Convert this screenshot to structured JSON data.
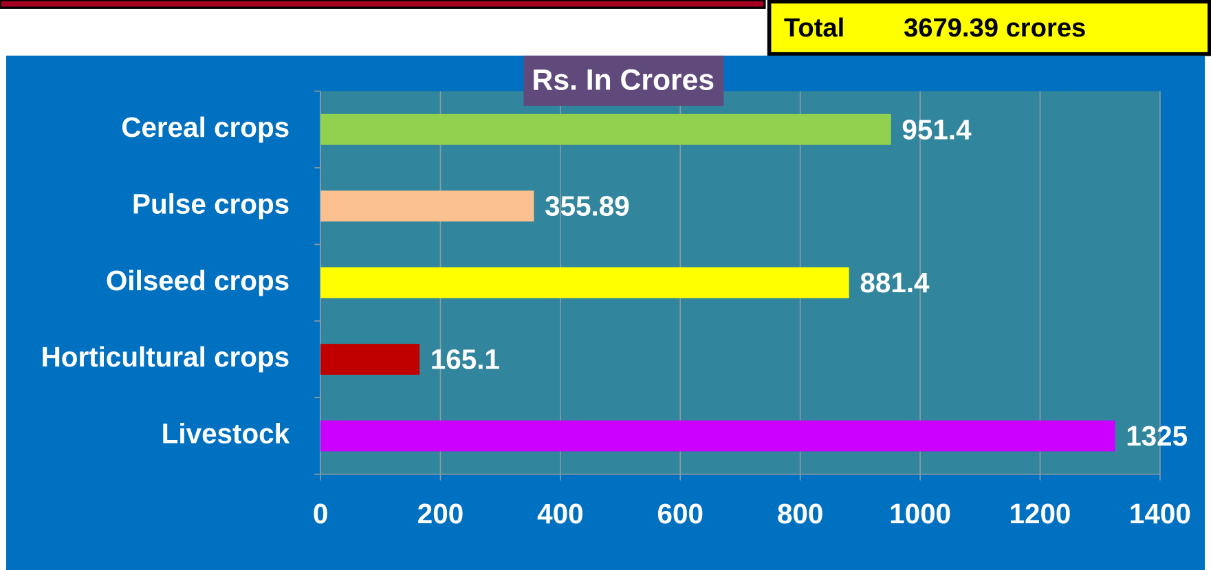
{
  "header": {
    "total_label": "Total",
    "total_value": "3679.39 crores"
  },
  "chart_data": {
    "type": "bar",
    "orientation": "horizontal",
    "title": "Rs. In Crores",
    "categories": [
      "Cereal crops",
      "Pulse crops",
      "Oilseed crops",
      "Horticultural crops",
      "Livestock"
    ],
    "values": [
      951.4,
      355.89,
      881.4,
      165.1,
      1325
    ],
    "colors": [
      "#92d050",
      "#fac090",
      "#ffff00",
      "#c00000",
      "#cc00ff"
    ],
    "xlim": [
      0,
      1400
    ],
    "xticks": [
      0,
      200,
      400,
      600,
      800,
      1000,
      1200,
      1400
    ],
    "grid": true
  }
}
